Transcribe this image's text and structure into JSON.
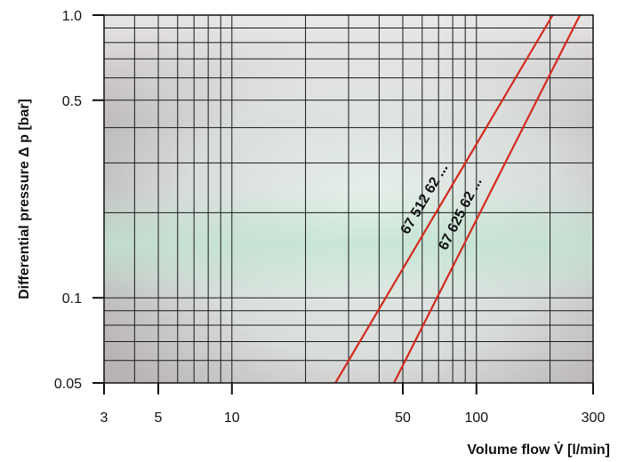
{
  "chart_data": {
    "type": "line",
    "xscale": "log",
    "yscale": "log",
    "xlim": [
      3,
      300
    ],
    "ylim": [
      0.05,
      1.0
    ],
    "xlabel": "Volume flow V̇ [l/min]",
    "ylabel": "Differential pressure Δ p [bar]",
    "x_ticks": [
      3,
      5,
      10,
      50,
      100,
      300
    ],
    "x_tick_labels": [
      "3",
      "5",
      "10",
      "50",
      "100",
      "300"
    ],
    "y_ticks": [
      0.05,
      0.1,
      0.5,
      1.0
    ],
    "y_tick_labels": [
      "0.05",
      "0.1",
      "0.5",
      "1.0"
    ],
    "x_grid": [
      3,
      4,
      5,
      6,
      7,
      8,
      9,
      10,
      20,
      30,
      40,
      50,
      60,
      70,
      80,
      90,
      100,
      200,
      300
    ],
    "y_grid": [
      0.05,
      0.06,
      0.07,
      0.08,
      0.09,
      0.1,
      0.2,
      0.3,
      0.4,
      0.5,
      0.6,
      0.7,
      0.8,
      0.9,
      1.0
    ],
    "grid": true,
    "line_color": "#d42a1e",
    "series": [
      {
        "name": "67 512 62 ...",
        "x": [
          26.5,
          205
        ],
        "y": [
          0.05,
          1.0
        ]
      },
      {
        "name": "67 625 62 ...",
        "x": [
          46,
          265
        ],
        "y": [
          0.05,
          1.0
        ]
      }
    ]
  }
}
